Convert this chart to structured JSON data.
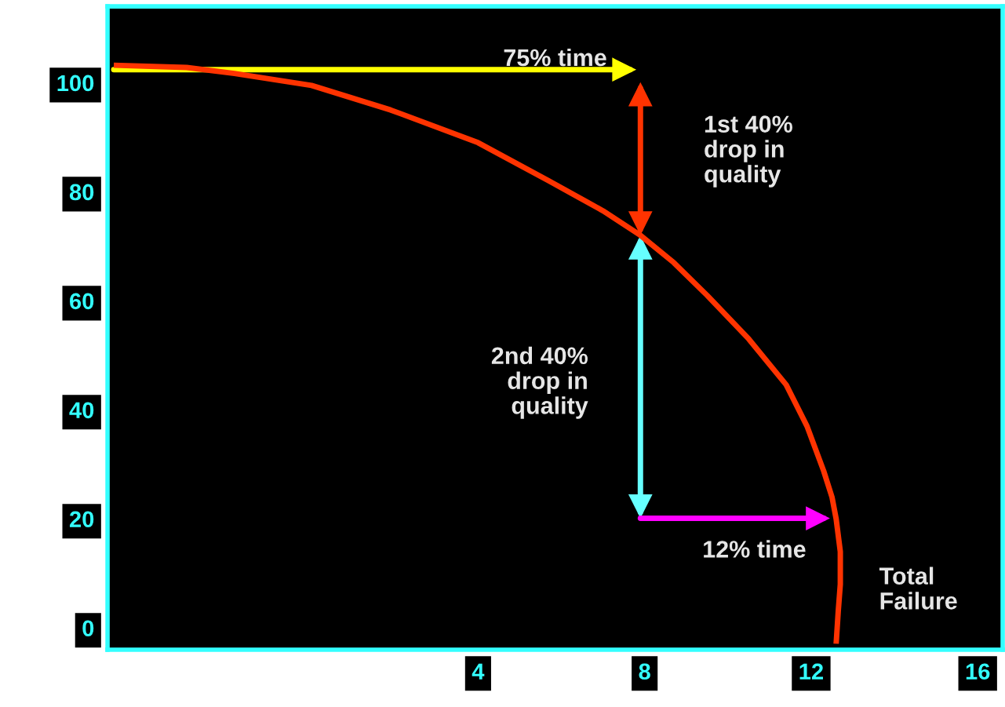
{
  "chart_data": {
    "type": "line",
    "xlim": [
      -4.9,
      16.6
    ],
    "ylim": [
      -4,
      114
    ],
    "xticks": [
      4,
      8,
      12,
      16
    ],
    "yticks": [
      0,
      20,
      40,
      60,
      80,
      100
    ],
    "grid": false,
    "legend": false,
    "series": [
      {
        "color": "#ff3300",
        "x": [
          -4.75,
          -3,
          -1.85,
          0,
          1.9,
          4,
          5.7,
          7,
          7.9,
          8.7,
          9.5,
          10.5,
          11.4,
          11.9,
          12.3,
          12.5,
          12.6,
          12.7,
          12.7,
          12.65,
          12.6
        ],
        "values": [
          103.2,
          102.8,
          101.7,
          99.5,
          95,
          89,
          82,
          76.5,
          72,
          67,
          61,
          53,
          44.6,
          37,
          28.8,
          24,
          20,
          14,
          8,
          3,
          -2.9
        ]
      }
    ],
    "annotations": [
      "75% time",
      "1st 40%\ndrop in\nquality",
      "2nd 40%\ndrop in\nquality",
      "12% time",
      "Total\nFailure"
    ]
  }
}
